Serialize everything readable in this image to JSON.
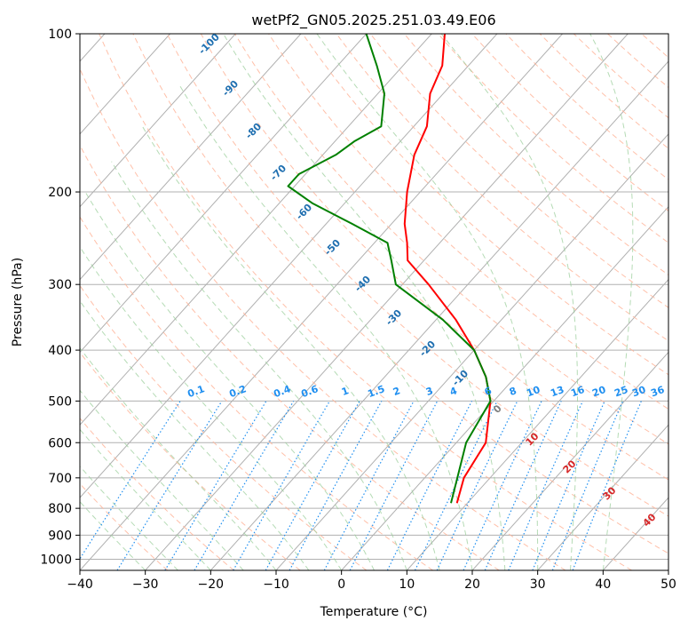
{
  "chart_data": {
    "type": "line",
    "title": "wetPf2_GN05.2025.251.03.49.E06",
    "xlabel": "Temperature (°C)",
    "ylabel": "Pressure (hPa)",
    "xlim": [
      -40,
      50
    ],
    "ylim": [
      1050,
      100
    ],
    "x_ticks": [
      "−40",
      "−30",
      "−20",
      "−10",
      "0",
      "10",
      "20",
      "30",
      "40",
      "50"
    ],
    "y_ticks": [
      "100",
      "200",
      "300",
      "400",
      "500",
      "600",
      "700",
      "800",
      "900",
      "1000"
    ],
    "series": [
      {
        "name": "Temperature",
        "color": "#ff0000",
        "pressure": [
          782,
          700,
          600,
          500,
          450,
          400,
          350,
          300,
          270,
          250,
          230,
          200,
          170,
          150,
          130,
          115,
          100
        ],
        "temperature": [
          8.4,
          6.0,
          4.5,
          -0.5,
          -4.5,
          -10.0,
          -17.0,
          -26.0,
          -32.5,
          -35.0,
          -38.0,
          -42.0,
          -46.0,
          -48.0,
          -52.0,
          -54.0,
          -58.0
        ]
      },
      {
        "name": "Dewpoint",
        "color": "#008000",
        "pressure": [
          782,
          700,
          600,
          500,
          450,
          400,
          350,
          300,
          270,
          250,
          230,
          210,
          195,
          185,
          170,
          160,
          150,
          130,
          115,
          100
        ],
        "dewpoint": [
          7.5,
          5.0,
          1.5,
          -0.5,
          -4.5,
          -10.0,
          -19.0,
          -31.0,
          -35.0,
          -38.0,
          -46.0,
          -55.0,
          -61.0,
          -61.0,
          -58.0,
          -57.0,
          -55.0,
          -59.0,
          -64.0,
          -70.0
        ]
      }
    ],
    "dry_adiabat_labels": [
      "-100",
      "-90",
      "-80",
      "-70",
      "-60",
      "-50",
      "-40",
      "-30",
      "-20",
      "-10",
      "0",
      "10",
      "20",
      "30",
      "40"
    ],
    "mixing_ratio_labels": [
      "0.1",
      "0.2",
      "0.4",
      "0.6",
      "1",
      "1.5",
      "2",
      "3",
      "4",
      "6",
      "8",
      "10",
      "13",
      "16",
      "20",
      "25",
      "30",
      "36"
    ],
    "mixing_ratio_values": [
      0.1,
      0.2,
      0.4,
      0.6,
      1,
      1.5,
      2,
      3,
      4,
      6,
      8,
      10,
      13,
      16,
      20,
      25,
      30,
      36
    ],
    "grid": true
  }
}
